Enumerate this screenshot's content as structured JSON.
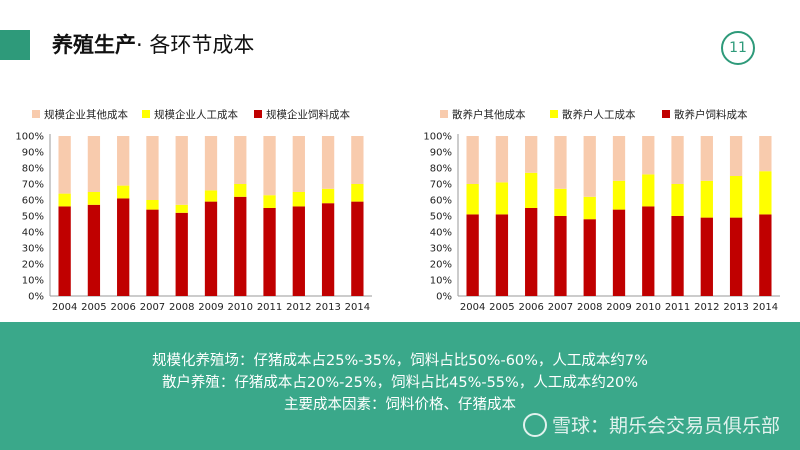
{
  "header": {
    "title_main": "养殖生产",
    "title_sub": "· 各环节成本",
    "page_number": "11"
  },
  "colors": {
    "accent": "#2e9a7a",
    "band": "#3aa88a",
    "feed": "#c00000",
    "labor": "#ffff00",
    "other": "#f8cbad"
  },
  "chart_data": [
    {
      "type": "bar",
      "stacked": true,
      "categories": [
        "2004",
        "2005",
        "2006",
        "2007",
        "2008",
        "2009",
        "2010",
        "2011",
        "2012",
        "2013",
        "2014"
      ],
      "y_ticks": [
        "0%",
        "10%",
        "20%",
        "30%",
        "40%",
        "50%",
        "60%",
        "70%",
        "80%",
        "90%",
        "100%"
      ],
      "ylim": [
        0,
        100
      ],
      "legend_position": "top",
      "series": [
        {
          "name": "规模企业饲料成本",
          "color": "#c00000",
          "values": [
            56,
            57,
            61,
            54,
            52,
            59,
            62,
            55,
            56,
            58,
            59
          ]
        },
        {
          "name": "规模企业人工成本",
          "color": "#ffff00",
          "values": [
            8,
            8,
            8,
            6,
            5,
            7,
            8,
            8,
            9,
            9,
            11
          ]
        },
        {
          "name": "规模企业其他成本",
          "color": "#f8cbad",
          "values": [
            36,
            35,
            31,
            40,
            43,
            34,
            30,
            37,
            35,
            33,
            30
          ]
        }
      ],
      "legend_order": [
        "规模企业其他成本",
        "规模企业人工成本",
        "规模企业饲料成本"
      ]
    },
    {
      "type": "bar",
      "stacked": true,
      "categories": [
        "2004",
        "2005",
        "2006",
        "2007",
        "2008",
        "2009",
        "2010",
        "2011",
        "2012",
        "2013",
        "2014"
      ],
      "y_ticks": [
        "0%",
        "10%",
        "20%",
        "30%",
        "40%",
        "50%",
        "60%",
        "70%",
        "80%",
        "90%",
        "100%"
      ],
      "ylim": [
        0,
        100
      ],
      "legend_position": "top",
      "series": [
        {
          "name": "散养户饲料成本",
          "color": "#c00000",
          "values": [
            51,
            51,
            55,
            50,
            48,
            54,
            56,
            50,
            49,
            49,
            51
          ]
        },
        {
          "name": "散养户人工成本",
          "color": "#ffff00",
          "values": [
            19,
            20,
            22,
            17,
            14,
            18,
            20,
            20,
            23,
            26,
            27
          ]
        },
        {
          "name": "散养户其他成本",
          "color": "#f8cbad",
          "values": [
            30,
            29,
            23,
            33,
            38,
            28,
            24,
            30,
            28,
            25,
            22
          ]
        }
      ],
      "legend_order": [
        "散养户其他成本",
        "散养户人工成本",
        "散养户饲料成本"
      ]
    }
  ],
  "summary": {
    "line1": "规模化养殖场：仔猪成本占25%-35%，饲料占比50%-60%，人工成本约7%",
    "line2": "散户养殖：仔猪成本占20%-25%，饲料占比45%-55%，人工成本约20%",
    "line3": "主要成本因素：饲料价格、仔猪成本"
  },
  "watermark": {
    "text": "雪球：期乐会交易员俱乐部",
    "icon": "snowball-logo-icon"
  }
}
